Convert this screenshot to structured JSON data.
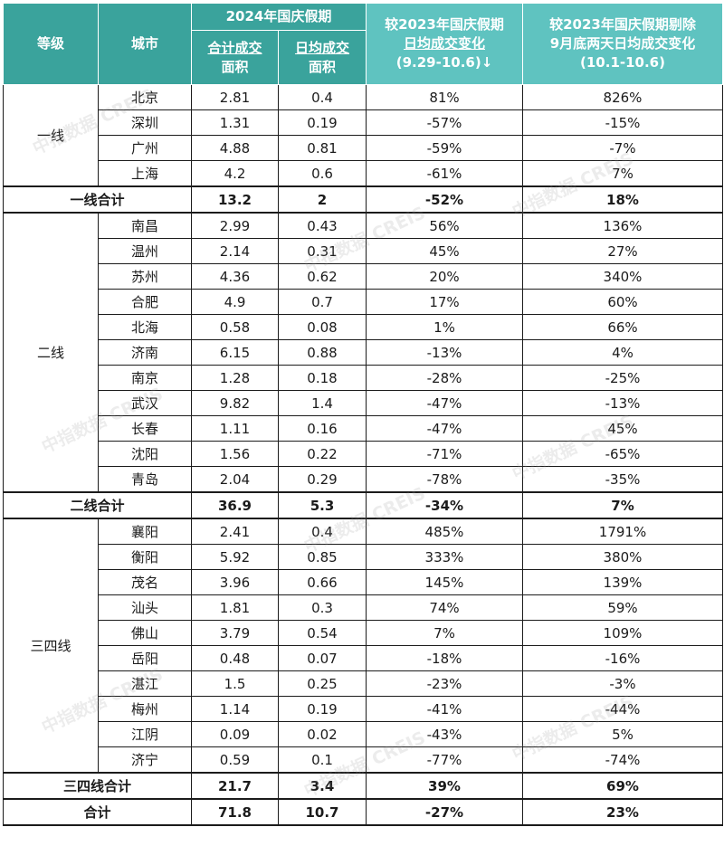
{
  "header": {
    "grade": "等级",
    "city": "城市",
    "year_group": "2024年国庆假期",
    "total_area": [
      "合计成交",
      "面积"
    ],
    "daily_area": [
      "日均成交",
      "面积"
    ],
    "change_2023": [
      "较2023年国庆假期",
      "日均成交变化",
      "(9.29-10.6)↓"
    ],
    "change_excl": [
      "较2023年国庆假期剔除",
      "9月底两天日均成交变化",
      "(10.1-10.6)"
    ]
  },
  "groups": [
    {
      "grade": "一线",
      "rows": [
        {
          "city": "北京",
          "total": "2.81",
          "daily": "0.4",
          "chg": "81%",
          "chg2": "826%"
        },
        {
          "city": "深圳",
          "total": "1.31",
          "daily": "0.19",
          "chg": "-57%",
          "chg2": "-15%"
        },
        {
          "city": "广州",
          "total": "4.88",
          "daily": "0.81",
          "chg": "-59%",
          "chg2": "-7%"
        },
        {
          "city": "上海",
          "total": "4.2",
          "daily": "0.6",
          "chg": "-61%",
          "chg2": "7%"
        }
      ],
      "subtotal": {
        "label": "一线合计",
        "total": "13.2",
        "daily": "2",
        "chg": "-52%",
        "chg2": "18%"
      }
    },
    {
      "grade": "二线",
      "rows": [
        {
          "city": "南昌",
          "total": "2.99",
          "daily": "0.43",
          "chg": "56%",
          "chg2": "136%"
        },
        {
          "city": "温州",
          "total": "2.14",
          "daily": "0.31",
          "chg": "45%",
          "chg2": "27%"
        },
        {
          "city": "苏州",
          "total": "4.36",
          "daily": "0.62",
          "chg": "20%",
          "chg2": "340%"
        },
        {
          "city": "合肥",
          "total": "4.9",
          "daily": "0.7",
          "chg": "17%",
          "chg2": "60%"
        },
        {
          "city": "北海",
          "total": "0.58",
          "daily": "0.08",
          "chg": "1%",
          "chg2": "66%"
        },
        {
          "city": "济南",
          "total": "6.15",
          "daily": "0.88",
          "chg": "-13%",
          "chg2": "4%"
        },
        {
          "city": "南京",
          "total": "1.28",
          "daily": "0.18",
          "chg": "-28%",
          "chg2": "-25%"
        },
        {
          "city": "武汉",
          "total": "9.82",
          "daily": "1.4",
          "chg": "-47%",
          "chg2": "-13%"
        },
        {
          "city": "长春",
          "total": "1.11",
          "daily": "0.16",
          "chg": "-47%",
          "chg2": "45%"
        },
        {
          "city": "沈阳",
          "total": "1.56",
          "daily": "0.22",
          "chg": "-71%",
          "chg2": "-65%"
        },
        {
          "city": "青岛",
          "total": "2.04",
          "daily": "0.29",
          "chg": "-78%",
          "chg2": "-35%"
        }
      ],
      "subtotal": {
        "label": "二线合计",
        "total": "36.9",
        "daily": "5.3",
        "chg": "-34%",
        "chg2": "7%"
      }
    },
    {
      "grade": "三四线",
      "rows": [
        {
          "city": "襄阳",
          "total": "2.41",
          "daily": "0.4",
          "chg": "485%",
          "chg2": "1791%"
        },
        {
          "city": "衡阳",
          "total": "5.92",
          "daily": "0.85",
          "chg": "333%",
          "chg2": "380%"
        },
        {
          "city": "茂名",
          "total": "3.96",
          "daily": "0.66",
          "chg": "145%",
          "chg2": "139%"
        },
        {
          "city": "汕头",
          "total": "1.81",
          "daily": "0.3",
          "chg": "74%",
          "chg2": "59%"
        },
        {
          "city": "佛山",
          "total": "3.79",
          "daily": "0.54",
          "chg": "7%",
          "chg2": "109%"
        },
        {
          "city": "岳阳",
          "total": "0.48",
          "daily": "0.07",
          "chg": "-18%",
          "chg2": "-16%"
        },
        {
          "city": "湛江",
          "total": "1.5",
          "daily": "0.25",
          "chg": "-23%",
          "chg2": "-3%"
        },
        {
          "city": "梅州",
          "total": "1.14",
          "daily": "0.19",
          "chg": "-41%",
          "chg2": "-44%"
        },
        {
          "city": "江阴",
          "total": "0.09",
          "daily": "0.02",
          "chg": "-43%",
          "chg2": "5%"
        },
        {
          "city": "济宁",
          "total": "0.59",
          "daily": "0.1",
          "chg": "-77%",
          "chg2": "-74%"
        }
      ],
      "subtotal": {
        "label": "三四线合计",
        "total": "21.7",
        "daily": "3.4",
        "chg": "39%",
        "chg2": "69%"
      }
    }
  ],
  "grand_total": {
    "label": "合计",
    "total": "71.8",
    "daily": "10.7",
    "chg": "-27%",
    "chg2": "23%"
  },
  "watermark": {
    "cn": "中指数据",
    "en": "CREIS"
  },
  "colors": {
    "header_dark": "#3aa39c",
    "header_light": "#5fc3c0",
    "border": "#1b1b1b"
  }
}
